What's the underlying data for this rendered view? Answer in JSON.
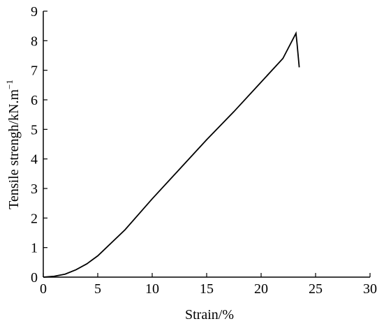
{
  "chart_data": {
    "type": "line",
    "x_label": "Strain/%",
    "y_label": "Tensile strengh/kN.m",
    "y_label_superscript": "−1",
    "x": [
      0,
      1,
      2,
      3,
      4,
      5,
      7.5,
      10,
      12.5,
      15,
      17.5,
      20,
      22,
      23.2,
      23.3,
      23.5
    ],
    "series": [
      {
        "color": "#000000",
        "values": [
          0,
          0.03,
          0.1,
          0.25,
          0.45,
          0.72,
          1.6,
          2.65,
          3.65,
          4.65,
          5.6,
          6.6,
          7.4,
          8.25,
          7.9,
          7.1
        ]
      }
    ],
    "xlim": [
      0,
      30
    ],
    "xticks": [
      0,
      5,
      10,
      15,
      20,
      25,
      30
    ],
    "ylim": [
      0,
      9
    ],
    "yticks": [
      0,
      1,
      2,
      3,
      4,
      5,
      6,
      7,
      8,
      9
    ]
  }
}
